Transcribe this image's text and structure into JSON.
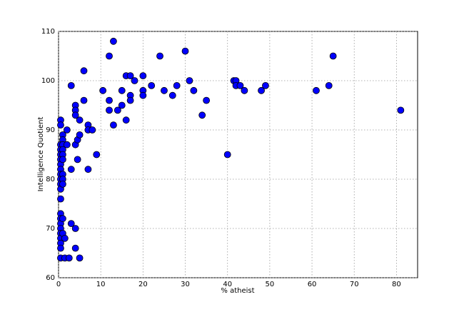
{
  "chart_data": {
    "type": "scatter",
    "xlabel": "% atheist",
    "ylabel": "Intelligence Quotient",
    "color": "#0000ff",
    "x": [
      0.5,
      0.5,
      0.5,
      0.5,
      0.5,
      0.5,
      0.5,
      0.5,
      0.5,
      0.5,
      0.5,
      0.5,
      0.5,
      0.5,
      0.5,
      0.5,
      0.5,
      0.5,
      0.5,
      0.5,
      0.5,
      0.5,
      1,
      1,
      1,
      1,
      1,
      1,
      1,
      1,
      1,
      1,
      1,
      1.5,
      1.5,
      2,
      2,
      2.5,
      3,
      3,
      3,
      4,
      4,
      4,
      4,
      4,
      4,
      4.5,
      4.5,
      5,
      5,
      5,
      6,
      6,
      7,
      7,
      7,
      8,
      9,
      10.5,
      12,
      12,
      12,
      13,
      13,
      14,
      15,
      15,
      16,
      16,
      17,
      17,
      17,
      18,
      20,
      20,
      20,
      22,
      24,
      25,
      27,
      28,
      30,
      31,
      32,
      34,
      35,
      40,
      41.5,
      42,
      42,
      43,
      44,
      48,
      49,
      61,
      64,
      65,
      81
    ],
    "values": [
      92,
      91,
      87,
      86,
      85,
      84,
      83,
      82,
      81,
      80,
      79,
      78,
      76,
      73,
      72,
      71,
      70,
      69,
      68,
      67,
      66,
      64,
      89,
      88,
      87,
      86,
      85,
      84,
      81,
      80,
      79,
      72,
      69,
      68,
      64,
      90,
      87,
      64,
      99,
      82,
      71,
      95,
      94,
      93,
      87,
      70,
      66,
      88,
      84,
      92,
      89,
      64,
      102,
      96,
      91,
      90,
      82,
      90,
      85,
      98,
      105,
      96,
      94,
      108,
      91,
      94,
      98,
      95,
      101,
      92,
      101,
      97,
      96,
      100,
      101,
      98,
      97,
      99,
      105,
      98,
      97,
      99,
      106,
      100,
      98,
      93,
      96,
      85,
      100,
      100,
      99,
      99,
      98,
      98,
      99,
      98,
      99,
      105,
      94
    ],
    "xlim": [
      0,
      85
    ],
    "ylim": [
      60,
      110
    ],
    "xticks": [
      0,
      10,
      20,
      30,
      40,
      50,
      60,
      70,
      80
    ],
    "yticks": [
      60,
      70,
      80,
      90,
      100,
      110
    ],
    "grid": true
  }
}
